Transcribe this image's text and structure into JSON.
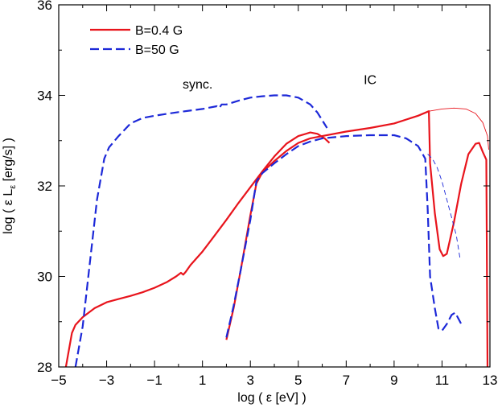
{
  "chart_data": {
    "type": "line",
    "title": "",
    "xlabel": "log ( ε [eV] )",
    "ylabel": "log ( ε L",
    "ylabel_sub": "ε",
    "ylabel_tail": " [erg/s] )",
    "xlim": [
      -5,
      13
    ],
    "ylim": [
      28,
      36
    ],
    "xticks": [
      -5,
      -3,
      -1,
      1,
      3,
      5,
      7,
      9,
      11,
      13
    ],
    "yticks": [
      28,
      30,
      32,
      34,
      36
    ],
    "xtick_labels": [
      "−5",
      "−3",
      "−1",
      "1",
      "3",
      "5",
      "7",
      "9",
      "11",
      "13"
    ],
    "ytick_labels": [
      "28",
      "30",
      "32",
      "34",
      "36"
    ],
    "grid": false,
    "legend_position": "top-left",
    "annotations": [
      {
        "text": "sync.",
        "x": 0.8,
        "y": 34.15
      },
      {
        "text": "IC",
        "x": 8.0,
        "y": 34.25
      }
    ],
    "series": [
      {
        "name": "B=0.4 G",
        "legend": true,
        "color": "#e8141c",
        "style": "solid",
        "width": 2.2,
        "segments": [
          [
            [
              -4.7,
              28.0
            ],
            [
              -4.6,
              28.3
            ],
            [
              -4.45,
              28.75
            ],
            [
              -4.3,
              28.93
            ],
            [
              -4.0,
              29.1
            ],
            [
              -3.5,
              29.3
            ],
            [
              -3.0,
              29.43
            ],
            [
              -2.5,
              29.5
            ],
            [
              -2.0,
              29.57
            ],
            [
              -1.5,
              29.65
            ],
            [
              -1.0,
              29.75
            ],
            [
              -0.5,
              29.87
            ],
            [
              -0.1,
              30.0
            ],
            [
              0.1,
              30.08
            ],
            [
              0.2,
              30.04
            ],
            [
              0.3,
              30.1
            ],
            [
              0.5,
              30.25
            ],
            [
              1.0,
              30.55
            ],
            [
              1.5,
              30.9
            ],
            [
              2.0,
              31.25
            ],
            [
              2.5,
              31.62
            ],
            [
              3.0,
              31.97
            ],
            [
              3.5,
              32.32
            ],
            [
              4.0,
              32.65
            ],
            [
              4.5,
              32.93
            ],
            [
              5.0,
              33.1
            ],
            [
              5.5,
              33.18
            ],
            [
              5.8,
              33.15
            ],
            [
              6.1,
              33.05
            ],
            [
              6.3,
              32.95
            ]
          ],
          [
            [
              2.0,
              28.6
            ],
            [
              2.3,
              29.3
            ],
            [
              2.6,
              30.15
            ],
            [
              3.0,
              31.35
            ],
            [
              3.25,
              32.05
            ],
            [
              3.5,
              32.3
            ],
            [
              4.0,
              32.55
            ],
            [
              4.5,
              32.77
            ],
            [
              5.0,
              32.95
            ],
            [
              5.5,
              33.05
            ],
            [
              6.0,
              33.1
            ],
            [
              7.0,
              33.2
            ],
            [
              8.0,
              33.28
            ],
            [
              9.0,
              33.38
            ],
            [
              10.0,
              33.55
            ],
            [
              10.45,
              33.65
            ],
            [
              10.5,
              32.5
            ],
            [
              10.7,
              31.4
            ],
            [
              10.9,
              30.6
            ],
            [
              11.05,
              30.45
            ],
            [
              11.2,
              30.5
            ],
            [
              11.5,
              31.2
            ],
            [
              11.8,
              32.05
            ],
            [
              12.1,
              32.7
            ],
            [
              12.4,
              32.93
            ],
            [
              12.55,
              32.95
            ],
            [
              12.7,
              32.75
            ],
            [
              12.85,
              32.58
            ],
            [
              12.88,
              29.8
            ],
            [
              12.9,
              28.0
            ]
          ]
        ]
      },
      {
        "name": "B=0.4 G (thin)",
        "legend": false,
        "color": "#e8141c",
        "style": "solid",
        "width": 0.9,
        "segments": [
          [
            [
              10.45,
              33.65
            ],
            [
              11.0,
              33.7
            ],
            [
              11.5,
              33.72
            ],
            [
              12.0,
              33.7
            ],
            [
              12.4,
              33.6
            ],
            [
              12.7,
              33.4
            ],
            [
              12.9,
              33.1
            ],
            [
              12.95,
              32.8
            ]
          ]
        ]
      },
      {
        "name": "B=50 G",
        "legend": true,
        "color": "#1c28d8",
        "style": "dashed",
        "width": 2.2,
        "segments": [
          [
            [
              -4.3,
              28.0
            ],
            [
              -4.0,
              28.9
            ],
            [
              -3.7,
              30.3
            ],
            [
              -3.4,
              31.7
            ],
            [
              -3.1,
              32.6
            ],
            [
              -2.9,
              32.85
            ],
            [
              -2.5,
              33.1
            ],
            [
              -2.0,
              33.38
            ],
            [
              -1.5,
              33.5
            ],
            [
              -1.0,
              33.55
            ],
            [
              0.0,
              33.63
            ],
            [
              1.0,
              33.7
            ],
            [
              1.6,
              33.76
            ],
            [
              1.7,
              33.72
            ],
            [
              1.8,
              33.8
            ],
            [
              2.0,
              33.8
            ],
            [
              2.5,
              33.88
            ],
            [
              3.0,
              33.95
            ],
            [
              3.5,
              33.98
            ],
            [
              4.0,
              34.0
            ],
            [
              4.5,
              34.0
            ],
            [
              5.0,
              33.95
            ],
            [
              5.5,
              33.8
            ],
            [
              5.8,
              33.62
            ],
            [
              6.2,
              33.28
            ]
          ],
          [
            [
              2.0,
              28.65
            ],
            [
              2.3,
              29.35
            ],
            [
              2.6,
              30.15
            ],
            [
              3.0,
              31.25
            ],
            [
              3.25,
              32.1
            ],
            [
              3.5,
              32.28
            ],
            [
              4.0,
              32.5
            ],
            [
              4.5,
              32.7
            ],
            [
              5.0,
              32.88
            ],
            [
              5.5,
              32.98
            ],
            [
              6.0,
              33.05
            ],
            [
              7.0,
              33.1
            ],
            [
              8.0,
              33.12
            ],
            [
              9.0,
              33.12
            ],
            [
              9.5,
              33.05
            ],
            [
              10.0,
              32.88
            ],
            [
              10.3,
              32.6
            ],
            [
              10.4,
              31.5
            ],
            [
              10.5,
              30.0
            ],
            [
              10.7,
              29.3
            ],
            [
              10.85,
              28.85
            ],
            [
              11.0,
              28.8
            ],
            [
              11.2,
              28.95
            ],
            [
              11.4,
              29.15
            ],
            [
              11.55,
              29.2
            ],
            [
              11.7,
              29.05
            ],
            [
              11.85,
              28.9
            ]
          ]
        ]
      },
      {
        "name": "B=50 G (thin)",
        "legend": false,
        "color": "#1c28d8",
        "style": "dashed",
        "width": 0.9,
        "segments": [
          [
            [
              10.4,
              32.7
            ],
            [
              10.6,
              32.6
            ],
            [
              10.8,
              32.4
            ],
            [
              11.0,
              32.1
            ],
            [
              11.2,
              31.7
            ],
            [
              11.4,
              31.3
            ],
            [
              11.6,
              30.9
            ],
            [
              11.75,
              30.4
            ]
          ]
        ]
      }
    ]
  }
}
